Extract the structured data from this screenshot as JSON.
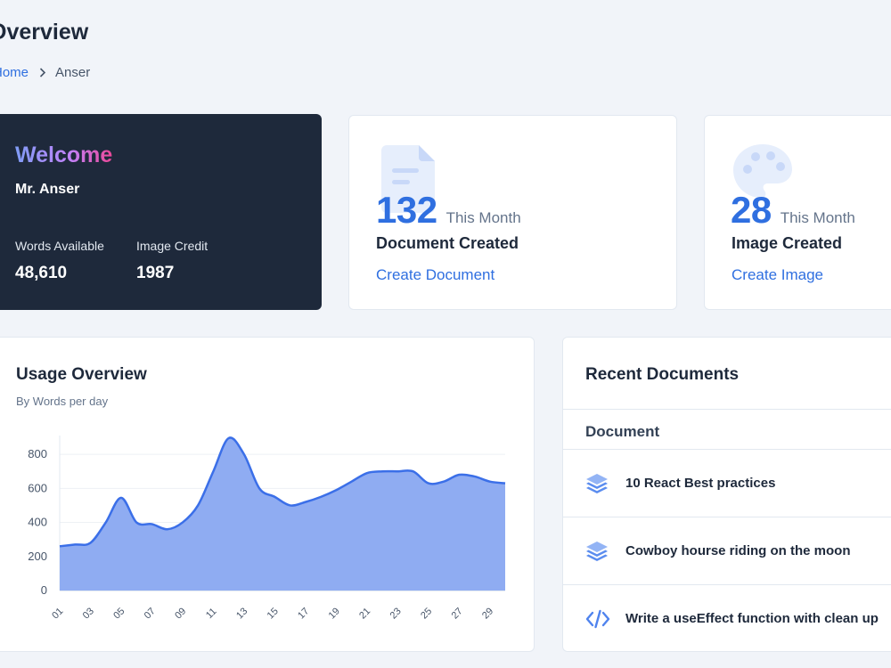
{
  "page": {
    "title": "Overview",
    "breadcrumb": {
      "home": "Home",
      "current": "Anser"
    }
  },
  "welcome": {
    "greeting": "Welcome",
    "name": "Mr. Anser",
    "words_label": "Words Available",
    "words_value": "48,610",
    "credit_label": "Image Credit",
    "credit_value": "1987"
  },
  "cards": {
    "documents": {
      "count": "132",
      "period": "This Month",
      "label": "Document Created",
      "link": "Create Document",
      "icon": "document-icon"
    },
    "images": {
      "count": "28",
      "period": "This Month",
      "label": "Image Created",
      "link": "Create Image",
      "icon": "palette-icon"
    }
  },
  "usage": {
    "title": "Usage Overview",
    "subtitle": "By Words per day"
  },
  "chart_data": {
    "type": "area",
    "x": [
      1,
      2,
      3,
      4,
      5,
      6,
      7,
      8,
      9,
      10,
      11,
      12,
      13,
      14,
      15,
      16,
      17,
      18,
      19,
      20,
      21,
      22,
      23,
      24,
      25,
      26,
      27,
      28,
      29,
      30
    ],
    "x_tick_labels": [
      "01",
      "03",
      "05",
      "07",
      "09",
      "11",
      "13",
      "15",
      "17",
      "19",
      "21",
      "23",
      "25",
      "27",
      "29"
    ],
    "series": [
      {
        "values": [
          260,
          270,
          280,
          400,
          545,
          400,
          390,
          360,
          400,
          500,
          700,
          895,
          800,
          600,
          550,
          500,
          520,
          550,
          590,
          640,
          690,
          700,
          700,
          700,
          630,
          640,
          680,
          670,
          640,
          630
        ]
      }
    ],
    "ylim": [
      0,
      900
    ],
    "y_ticks": [
      0,
      200,
      400,
      600,
      800
    ],
    "grid": true,
    "color": "#3b6fe8",
    "fill": "#8facf2"
  },
  "recent": {
    "title": "Recent Documents",
    "column": "Document",
    "items": [
      {
        "title": "10 React Best practices",
        "icon": "layers-icon"
      },
      {
        "title": "Cowboy hourse riding on the moon",
        "icon": "layers-icon"
      },
      {
        "title": "Write a useEffect function with clean up",
        "icon": "code-icon"
      }
    ]
  }
}
